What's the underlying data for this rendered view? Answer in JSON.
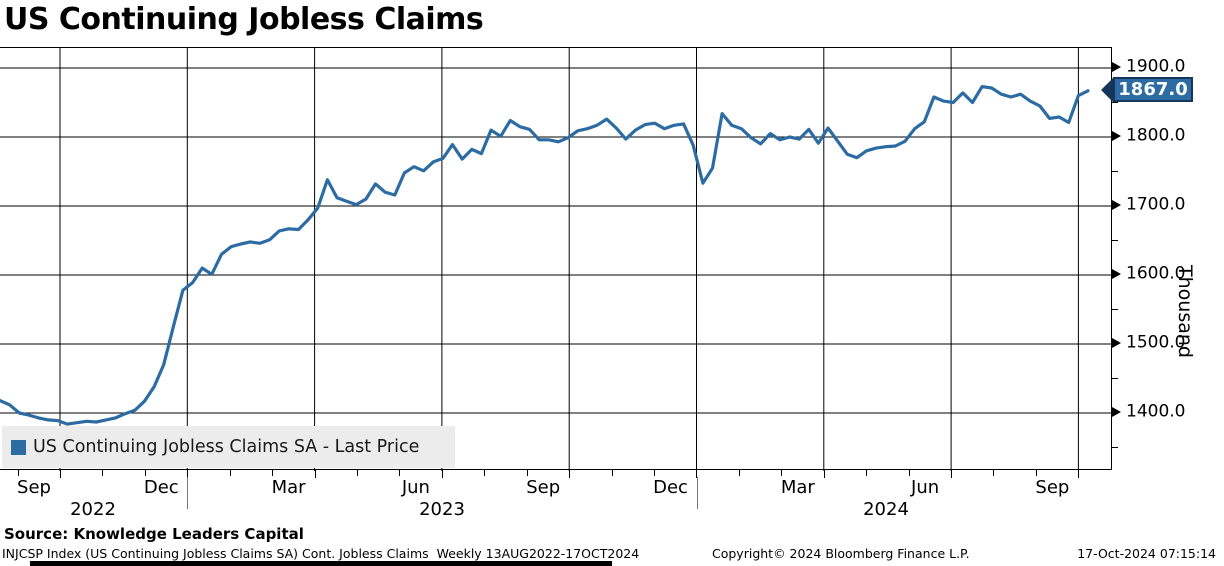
{
  "title": "US Continuing Jobless Claims",
  "legend": {
    "label": "US Continuing Jobless Claims SA - Last Price"
  },
  "badge": {
    "last_price": "1867.0"
  },
  "y_axis": {
    "unit_label": "Thousand",
    "major_tick_labels": [
      "1900.0",
      "1800.0",
      "1700.0",
      "1600.0",
      "1500.0",
      "1400.0"
    ]
  },
  "x_axis": {
    "month_tick_labels": [
      "Sep",
      "Dec",
      "Mar",
      "Jun",
      "Sep",
      "Dec",
      "Mar",
      "Jun",
      "Sep"
    ],
    "year_labels": [
      "2022",
      "2023",
      "2024"
    ]
  },
  "footer": {
    "source": "Source: Knowledge Leaders Capital",
    "description": "INJCSP Index (US Continuing Jobless Claims SA) Cont. Jobless Claims  Weekly 13AUG2022-17OCT2024",
    "copyright": "Copyright© 2024 Bloomberg Finance L.P.",
    "timestamp": "17-Oct-2024 07:15:14"
  },
  "colors": {
    "line": "#2d6ba3",
    "badge_fill": "#2d6ba3",
    "badge_border": "#15365a",
    "legend_bg": "#ececec",
    "grid": "#000000"
  },
  "chart_data": {
    "type": "line",
    "title": "US Continuing Jobless Claims",
    "frequency": "Weekly",
    "x_range": "13AUG2022-17OCT2024",
    "ylabel": "Thousand",
    "yticks": [
      1900,
      1800,
      1700,
      1600,
      1500,
      1400
    ],
    "ylim": [
      1316,
      1929
    ],
    "grid": "on",
    "legend_position": "bottom-left",
    "last_value": 1867.0,
    "series": [
      {
        "name": "US Continuing Jobless Claims SA - Last Price",
        "values": [
          1418,
          1412,
          1400,
          1397,
          1393,
          1390,
          1389,
          1384,
          1386,
          1388,
          1387,
          1390,
          1393,
          1399,
          1404,
          1417,
          1438,
          1470,
          1525,
          1578,
          1589,
          1610,
          1601,
          1630,
          1641,
          1645,
          1648,
          1646,
          1651,
          1664,
          1667,
          1666,
          1680,
          1697,
          1738,
          1712,
          1707,
          1702,
          1710,
          1732,
          1720,
          1716,
          1748,
          1757,
          1751,
          1764,
          1769,
          1789,
          1768,
          1782,
          1776,
          1810,
          1801,
          1824,
          1815,
          1811,
          1796,
          1796,
          1793,
          1799,
          1809,
          1812,
          1817,
          1826,
          1813,
          1797,
          1810,
          1818,
          1820,
          1812,
          1817,
          1819,
          1788,
          1733,
          1755,
          1834,
          1817,
          1812,
          1799,
          1790,
          1805,
          1796,
          1800,
          1797,
          1811,
          1791,
          1813,
          1794,
          1775,
          1770,
          1780,
          1784,
          1786,
          1787,
          1794,
          1812,
          1822,
          1858,
          1852,
          1850,
          1864,
          1850,
          1873,
          1871,
          1862,
          1858,
          1862,
          1852,
          1845,
          1827,
          1829,
          1821,
          1860,
          1867
        ]
      }
    ]
  }
}
